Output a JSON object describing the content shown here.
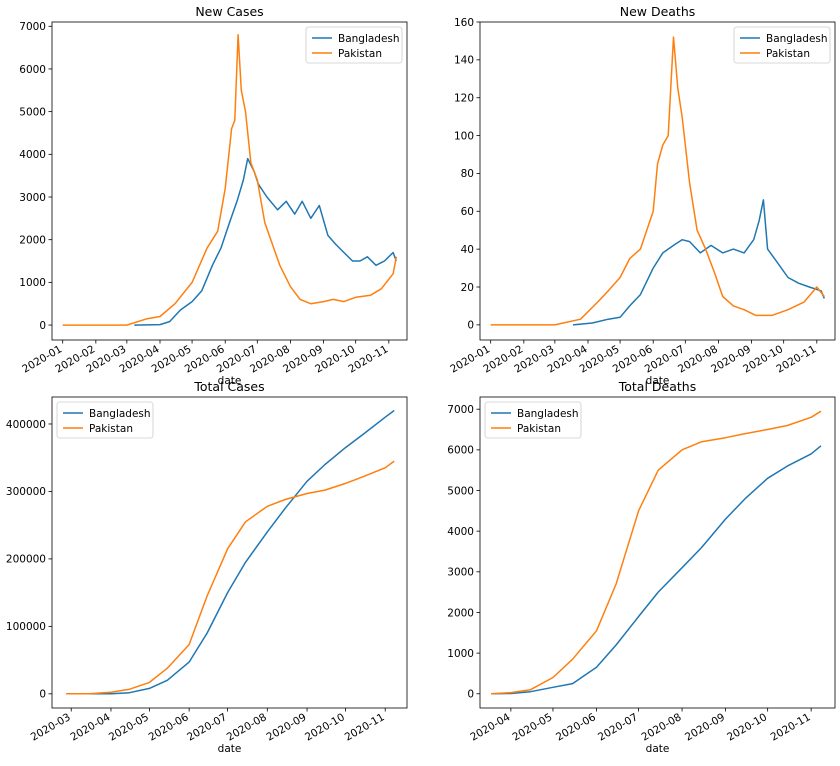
{
  "colors": {
    "Bangladesh": "#1f77b4",
    "Pakistan": "#ff7f0e"
  },
  "chart_data": [
    {
      "type": "line",
      "title": "New Cases",
      "xlabel": "date",
      "ylabel": "",
      "x_ticks": [
        "2020-01",
        "2020-02",
        "2020-03",
        "2020-04",
        "2020-05",
        "2020-06",
        "2020-07",
        "2020-08",
        "2020-09",
        "2020-10",
        "2020-11"
      ],
      "y_ticks": [
        0,
        1000,
        2000,
        3000,
        4000,
        5000,
        6000,
        7000
      ],
      "ylim": [
        -350,
        7100
      ],
      "legend": "top-right",
      "series": [
        {
          "name": "Bangladesh",
          "points": [
            [
              "2020-03-08",
              0
            ],
            [
              "2020-04-01",
              10
            ],
            [
              "2020-04-10",
              80
            ],
            [
              "2020-04-20",
              350
            ],
            [
              "2020-05-01",
              550
            ],
            [
              "2020-05-10",
              800
            ],
            [
              "2020-05-20",
              1400
            ],
            [
              "2020-05-28",
              1800
            ],
            [
              "2020-06-05",
              2400
            ],
            [
              "2020-06-12",
              2900
            ],
            [
              "2020-06-18",
              3400
            ],
            [
              "2020-06-22",
              3900
            ],
            [
              "2020-06-28",
              3600
            ],
            [
              "2020-07-02",
              3300
            ],
            [
              "2020-07-10",
              3000
            ],
            [
              "2020-07-20",
              2700
            ],
            [
              "2020-07-28",
              2900
            ],
            [
              "2020-08-05",
              2600
            ],
            [
              "2020-08-12",
              2900
            ],
            [
              "2020-08-20",
              2500
            ],
            [
              "2020-08-28",
              2800
            ],
            [
              "2020-09-05",
              2100
            ],
            [
              "2020-09-12",
              1900
            ],
            [
              "2020-09-20",
              1700
            ],
            [
              "2020-09-28",
              1500
            ],
            [
              "2020-10-05",
              1500
            ],
            [
              "2020-10-12",
              1600
            ],
            [
              "2020-10-20",
              1400
            ],
            [
              "2020-10-28",
              1500
            ],
            [
              "2020-11-05",
              1700
            ],
            [
              "2020-11-08",
              1500
            ]
          ]
        },
        {
          "name": "Pakistan",
          "points": [
            [
              "2020-01-01",
              0
            ],
            [
              "2020-03-01",
              0
            ],
            [
              "2020-03-20",
              150
            ],
            [
              "2020-04-01",
              200
            ],
            [
              "2020-04-15",
              500
            ],
            [
              "2020-05-01",
              1000
            ],
            [
              "2020-05-15",
              1800
            ],
            [
              "2020-05-25",
              2200
            ],
            [
              "2020-06-01",
              3200
            ],
            [
              "2020-06-07",
              4600
            ],
            [
              "2020-06-10",
              4800
            ],
            [
              "2020-06-13",
              6800
            ],
            [
              "2020-06-16",
              5500
            ],
            [
              "2020-06-20",
              5000
            ],
            [
              "2020-06-25",
              3800
            ],
            [
              "2020-07-01",
              3400
            ],
            [
              "2020-07-08",
              2400
            ],
            [
              "2020-07-15",
              1900
            ],
            [
              "2020-07-22",
              1400
            ],
            [
              "2020-08-01",
              900
            ],
            [
              "2020-08-10",
              600
            ],
            [
              "2020-08-20",
              500
            ],
            [
              "2020-09-01",
              550
            ],
            [
              "2020-09-10",
              600
            ],
            [
              "2020-09-20",
              550
            ],
            [
              "2020-10-01",
              650
            ],
            [
              "2020-10-15",
              700
            ],
            [
              "2020-10-25",
              850
            ],
            [
              "2020-11-05",
              1200
            ],
            [
              "2020-11-08",
              1600
            ]
          ]
        }
      ]
    },
    {
      "type": "line",
      "title": "New Deaths",
      "xlabel": "date",
      "ylabel": "",
      "x_ticks": [
        "2020-01",
        "2020-02",
        "2020-03",
        "2020-04",
        "2020-05",
        "2020-06",
        "2020-07",
        "2020-08",
        "2020-09",
        "2020-10",
        "2020-11"
      ],
      "y_ticks": [
        0,
        20,
        40,
        60,
        80,
        100,
        120,
        140,
        160
      ],
      "ylim": [
        -8,
        160
      ],
      "legend": "top-right",
      "series": [
        {
          "name": "Bangladesh",
          "points": [
            [
              "2020-03-18",
              0
            ],
            [
              "2020-04-05",
              1
            ],
            [
              "2020-04-20",
              3
            ],
            [
              "2020-05-01",
              4
            ],
            [
              "2020-05-10",
              10
            ],
            [
              "2020-05-20",
              16
            ],
            [
              "2020-06-01",
              30
            ],
            [
              "2020-06-10",
              38
            ],
            [
              "2020-06-20",
              42
            ],
            [
              "2020-06-28",
              45
            ],
            [
              "2020-07-05",
              44
            ],
            [
              "2020-07-15",
              38
            ],
            [
              "2020-07-25",
              42
            ],
            [
              "2020-08-05",
              38
            ],
            [
              "2020-08-15",
              40
            ],
            [
              "2020-08-25",
              38
            ],
            [
              "2020-09-03",
              45
            ],
            [
              "2020-09-08",
              55
            ],
            [
              "2020-09-12",
              66
            ],
            [
              "2020-09-16",
              40
            ],
            [
              "2020-09-25",
              33
            ],
            [
              "2020-10-05",
              25
            ],
            [
              "2020-10-15",
              22
            ],
            [
              "2020-10-25",
              20
            ],
            [
              "2020-11-05",
              18
            ],
            [
              "2020-11-08",
              14
            ]
          ]
        },
        {
          "name": "Pakistan",
          "points": [
            [
              "2020-01-01",
              0
            ],
            [
              "2020-03-01",
              0
            ],
            [
              "2020-03-25",
              3
            ],
            [
              "2020-04-10",
              12
            ],
            [
              "2020-04-20",
              18
            ],
            [
              "2020-05-01",
              25
            ],
            [
              "2020-05-10",
              35
            ],
            [
              "2020-05-20",
              40
            ],
            [
              "2020-06-01",
              60
            ],
            [
              "2020-06-05",
              85
            ],
            [
              "2020-06-10",
              95
            ],
            [
              "2020-06-15",
              100
            ],
            [
              "2020-06-20",
              152
            ],
            [
              "2020-06-24",
              125
            ],
            [
              "2020-06-28",
              110
            ],
            [
              "2020-07-05",
              75
            ],
            [
              "2020-07-12",
              50
            ],
            [
              "2020-07-20",
              40
            ],
            [
              "2020-07-28",
              28
            ],
            [
              "2020-08-05",
              15
            ],
            [
              "2020-08-15",
              10
            ],
            [
              "2020-08-25",
              8
            ],
            [
              "2020-09-05",
              5
            ],
            [
              "2020-09-20",
              5
            ],
            [
              "2020-10-05",
              8
            ],
            [
              "2020-10-20",
              12
            ],
            [
              "2020-11-01",
              20
            ],
            [
              "2020-11-08",
              15
            ]
          ]
        }
      ]
    },
    {
      "type": "line",
      "title": "Total Cases",
      "xlabel": "date",
      "ylabel": "",
      "x_ticks": [
        "2020-03",
        "2020-04",
        "2020-05",
        "2020-06",
        "2020-07",
        "2020-08",
        "2020-09",
        "2020-10",
        "2020-11"
      ],
      "y_ticks": [
        0,
        100000,
        200000,
        300000,
        400000
      ],
      "ylim": [
        -21000,
        440000
      ],
      "legend": "top-left",
      "series": [
        {
          "name": "Bangladesh",
          "points": [
            [
              "2020-03-08",
              0
            ],
            [
              "2020-04-01",
              100
            ],
            [
              "2020-04-15",
              1500
            ],
            [
              "2020-05-01",
              8000
            ],
            [
              "2020-05-15",
              20000
            ],
            [
              "2020-06-01",
              47000
            ],
            [
              "2020-06-15",
              90000
            ],
            [
              "2020-07-01",
              150000
            ],
            [
              "2020-07-15",
              195000
            ],
            [
              "2020-08-01",
              240000
            ],
            [
              "2020-08-15",
              275000
            ],
            [
              "2020-09-01",
              315000
            ],
            [
              "2020-09-15",
              340000
            ],
            [
              "2020-10-01",
              365000
            ],
            [
              "2020-10-15",
              385000
            ],
            [
              "2020-11-01",
              410000
            ],
            [
              "2020-11-08",
              420000
            ]
          ]
        },
        {
          "name": "Pakistan",
          "points": [
            [
              "2020-02-26",
              0
            ],
            [
              "2020-03-15",
              100
            ],
            [
              "2020-04-01",
              2400
            ],
            [
              "2020-04-15",
              6500
            ],
            [
              "2020-05-01",
              17000
            ],
            [
              "2020-05-15",
              38000
            ],
            [
              "2020-06-01",
              73000
            ],
            [
              "2020-06-15",
              145000
            ],
            [
              "2020-07-01",
              215000
            ],
            [
              "2020-07-15",
              255000
            ],
            [
              "2020-08-01",
              278000
            ],
            [
              "2020-08-15",
              288000
            ],
            [
              "2020-09-01",
              297000
            ],
            [
              "2020-09-15",
              302000
            ],
            [
              "2020-10-01",
              312000
            ],
            [
              "2020-10-15",
              322000
            ],
            [
              "2020-11-01",
              335000
            ],
            [
              "2020-11-08",
              345000
            ]
          ]
        }
      ]
    },
    {
      "type": "line",
      "title": "Total Deaths",
      "xlabel": "date",
      "ylabel": "",
      "x_ticks": [
        "2020-04",
        "2020-05",
        "2020-06",
        "2020-07",
        "2020-08",
        "2020-09",
        "2020-10",
        "2020-11"
      ],
      "y_ticks": [
        0,
        1000,
        2000,
        3000,
        4000,
        5000,
        6000,
        7000
      ],
      "ylim": [
        -350,
        7300
      ],
      "legend": "top-left",
      "series": [
        {
          "name": "Bangladesh",
          "points": [
            [
              "2020-03-18",
              0
            ],
            [
              "2020-04-01",
              6
            ],
            [
              "2020-04-15",
              50
            ],
            [
              "2020-05-01",
              160
            ],
            [
              "2020-05-15",
              250
            ],
            [
              "2020-06-01",
              650
            ],
            [
              "2020-06-15",
              1200
            ],
            [
              "2020-07-01",
              1900
            ],
            [
              "2020-07-15",
              2500
            ],
            [
              "2020-08-01",
              3100
            ],
            [
              "2020-08-15",
              3600
            ],
            [
              "2020-09-01",
              4300
            ],
            [
              "2020-09-15",
              4800
            ],
            [
              "2020-10-01",
              5300
            ],
            [
              "2020-10-15",
              5600
            ],
            [
              "2020-11-01",
              5900
            ],
            [
              "2020-11-08",
              6100
            ]
          ]
        },
        {
          "name": "Pakistan",
          "points": [
            [
              "2020-03-18",
              0
            ],
            [
              "2020-04-01",
              30
            ],
            [
              "2020-04-15",
              100
            ],
            [
              "2020-05-01",
              400
            ],
            [
              "2020-05-15",
              850
            ],
            [
              "2020-06-01",
              1550
            ],
            [
              "2020-06-15",
              2700
            ],
            [
              "2020-07-01",
              4500
            ],
            [
              "2020-07-15",
              5500
            ],
            [
              "2020-08-01",
              6000
            ],
            [
              "2020-08-15",
              6200
            ],
            [
              "2020-09-01",
              6300
            ],
            [
              "2020-09-15",
              6400
            ],
            [
              "2020-10-01",
              6500
            ],
            [
              "2020-10-15",
              6600
            ],
            [
              "2020-11-01",
              6800
            ],
            [
              "2020-11-08",
              6950
            ]
          ]
        }
      ]
    }
  ]
}
